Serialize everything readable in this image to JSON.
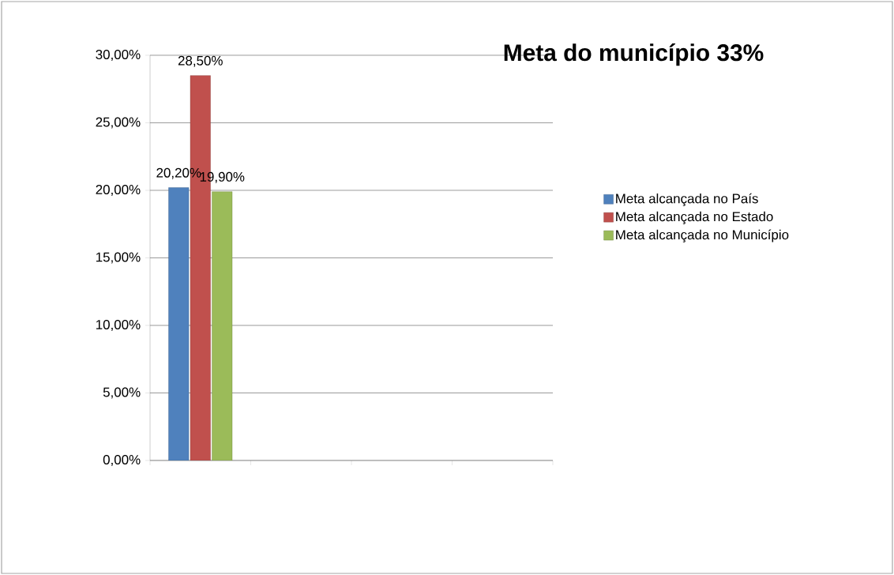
{
  "chart_data": {
    "type": "bar",
    "title": "Meta do município 33%",
    "categories": [
      null,
      null,
      null,
      null
    ],
    "series": [
      {
        "name": "Meta alcançada no País",
        "color": "#4f81bd",
        "values": [
          20.2,
          null,
          null,
          null
        ],
        "value_labels": [
          "20,20%",
          null,
          null,
          null
        ]
      },
      {
        "name": "Meta alcançada no Estado",
        "color": "#c0504d",
        "values": [
          28.5,
          null,
          null,
          null
        ],
        "value_labels": [
          "28,50%",
          null,
          null,
          null
        ]
      },
      {
        "name": "Meta alcançada no Município",
        "color": "#9bbb59",
        "values": [
          19.9,
          null,
          null,
          null
        ],
        "value_labels": [
          "19,90%",
          null,
          null,
          null
        ]
      }
    ],
    "ylim": [
      0,
      30
    ],
    "yticks": [
      {
        "value": 0,
        "label": "0,00%"
      },
      {
        "value": 5,
        "label": "5,00%"
      },
      {
        "value": 10,
        "label": "10,00%"
      },
      {
        "value": 15,
        "label": "15,00%"
      },
      {
        "value": 20,
        "label": "20,00%"
      },
      {
        "value": 25,
        "label": "25,00%"
      },
      {
        "value": 30,
        "label": "30,00%"
      }
    ],
    "grid": "y",
    "legend": "right",
    "tick_labels": "y"
  }
}
